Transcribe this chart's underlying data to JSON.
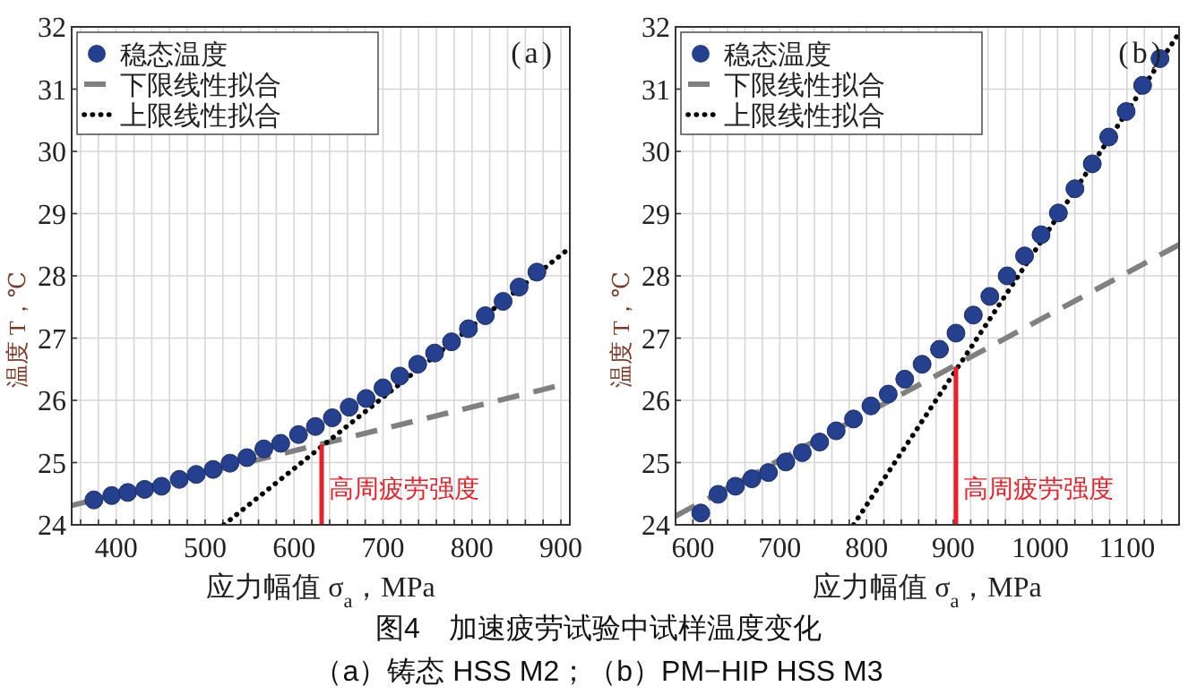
{
  "chart_data": [
    {
      "type": "scatter",
      "title": "(a)",
      "xlabel": "应力幅值 σ$_{a}$，MPa",
      "ylabel": "温度 T，℃",
      "xlim": [
        350,
        910
      ],
      "ylim": [
        24,
        32
      ],
      "xticks": [
        {
          "value": 360,
          "label": null
        },
        {
          "value": 380,
          "label": null
        },
        400,
        {
          "value": 420,
          "label": null
        },
        {
          "value": 440,
          "label": null
        },
        {
          "value": 460,
          "label": null
        },
        {
          "value": 480,
          "label": null
        },
        500,
        {
          "value": 520,
          "label": null
        },
        {
          "value": 540,
          "label": null
        },
        {
          "value": 560,
          "label": null
        },
        {
          "value": 580,
          "label": null
        },
        600,
        {
          "value": 620,
          "label": null
        },
        {
          "value": 640,
          "label": null
        },
        {
          "value": 660,
          "label": null
        },
        {
          "value": 680,
          "label": null
        },
        700,
        {
          "value": 720,
          "label": null
        },
        {
          "value": 740,
          "label": null
        },
        {
          "value": 760,
          "label": null
        },
        {
          "value": 780,
          "label": null
        },
        800,
        {
          "value": 820,
          "label": null
        },
        {
          "value": 840,
          "label": null
        },
        {
          "value": 860,
          "label": null
        },
        {
          "value": 880,
          "label": null
        },
        900
      ],
      "yticks": [
        24,
        25,
        26,
        27,
        28,
        29,
        30,
        31,
        32
      ],
      "grid": true,
      "legend": "top left",
      "series": [
        {
          "name": "稳态温度",
          "type": "scatter",
          "marker": "circle",
          "color": "#25408f",
          "x": [
            375,
            395,
            413,
            432,
            451,
            471,
            490,
            509,
            528,
            547,
            566,
            585,
            605,
            624,
            643,
            662,
            681,
            700,
            719,
            739,
            758,
            777,
            796,
            815,
            835,
            853,
            873
          ],
          "values": [
            24.4,
            24.47,
            24.52,
            24.57,
            24.62,
            24.73,
            24.81,
            24.89,
            24.99,
            25.08,
            25.22,
            25.31,
            25.45,
            25.58,
            25.72,
            25.89,
            26.03,
            26.2,
            26.39,
            26.58,
            26.76,
            26.94,
            27.15,
            27.36,
            27.59,
            27.82,
            28.06
          ]
        },
        {
          "name": "下限线性拟合",
          "type": "line",
          "line_style": "dashed",
          "color": "#808080",
          "x": [
            350,
            893
          ],
          "values": [
            24.31,
            26.22
          ]
        },
        {
          "name": "上限线性拟合",
          "type": "line",
          "line_style": "dotted",
          "color": "#000000",
          "x": [
            521,
            910
          ],
          "values": [
            24,
            28.45
          ]
        },
        {
          "type": "line",
          "line_style": "solid",
          "color": "#e8202a",
          "x": [
            631,
            631
          ],
          "values": [
            24,
            25.29
          ]
        }
      ],
      "annotations": [
        {
          "text": "高周疲劳强度",
          "x": 631,
          "y": 24.45
        },
        "图4　加速疲劳试验中试样温度变化",
        "（a）铸态 HSS M2；（b）PM−HIP HSS M3"
      ]
    },
    {
      "type": "scatter",
      "title": "(b)",
      "xlabel": "应力幅值 σ$_{a}$，MPa",
      "ylabel": "温度 T，℃",
      "xlim": [
        580,
        1160
      ],
      "ylim": [
        24,
        32
      ],
      "xticks": [
        600,
        {
          "value": 620,
          "label": null
        },
        {
          "value": 640,
          "label": null
        },
        {
          "value": 660,
          "label": null
        },
        {
          "value": 680,
          "label": null
        },
        700,
        {
          "value": 720,
          "label": null
        },
        {
          "value": 740,
          "label": null
        },
        {
          "value": 760,
          "label": null
        },
        {
          "value": 780,
          "label": null
        },
        800,
        {
          "value": 820,
          "label": null
        },
        {
          "value": 840,
          "label": null
        },
        {
          "value": 860,
          "label": null
        },
        {
          "value": 880,
          "label": null
        },
        900,
        {
          "value": 920,
          "label": null
        },
        {
          "value": 940,
          "label": null
        },
        {
          "value": 960,
          "label": null
        },
        {
          "value": 980,
          "label": null
        },
        1000,
        {
          "value": 1020,
          "label": null
        },
        {
          "value": 1040,
          "label": null
        },
        {
          "value": 1060,
          "label": null
        },
        {
          "value": 1080,
          "label": null
        },
        1100,
        {
          "value": 1120,
          "label": null
        },
        {
          "value": 1140,
          "label": null
        }
      ],
      "yticks": [
        24,
        25,
        26,
        27,
        28,
        29,
        30,
        31,
        32
      ],
      "grid": true,
      "legend": "top left",
      "series": [
        {
          "name": "稳态温度",
          "type": "scatter",
          "marker": "circle",
          "color": "#25408f",
          "x": [
            609,
            629,
            649,
            668,
            687,
            707,
            726,
            746,
            765,
            785,
            805,
            825,
            844,
            864,
            884,
            903,
            923,
            942,
            962,
            982,
            1001,
            1021,
            1040,
            1060,
            1079,
            1099,
            1118,
            1138
          ],
          "values": [
            24.19,
            24.49,
            24.62,
            24.74,
            24.84,
            25.01,
            25.16,
            25.33,
            25.51,
            25.7,
            25.91,
            26.1,
            26.34,
            26.58,
            26.82,
            27.08,
            27.37,
            27.67,
            28.0,
            28.32,
            28.66,
            29.01,
            29.4,
            29.8,
            30.23,
            30.64,
            31.06,
            31.49
          ]
        },
        {
          "name": "下限线性拟合",
          "type": "line",
          "line_style": "dashed",
          "color": "#808080",
          "x": [
            580,
            1160
          ],
          "values": [
            24.14,
            28.5
          ]
        },
        {
          "name": "上限线性拟合",
          "type": "line",
          "line_style": "dotted",
          "color": "#000000",
          "x": [
            785,
            1160
          ],
          "values": [
            24,
            31.9
          ]
        },
        {
          "type": "line",
          "line_style": "solid",
          "color": "#e8202a",
          "x": [
            903,
            903
          ],
          "values": [
            24,
            26.54
          ]
        }
      ],
      "annotations": [
        {
          "text": "高周疲劳强度",
          "x": 903,
          "y": 24.45
        }
      ]
    }
  ]
}
